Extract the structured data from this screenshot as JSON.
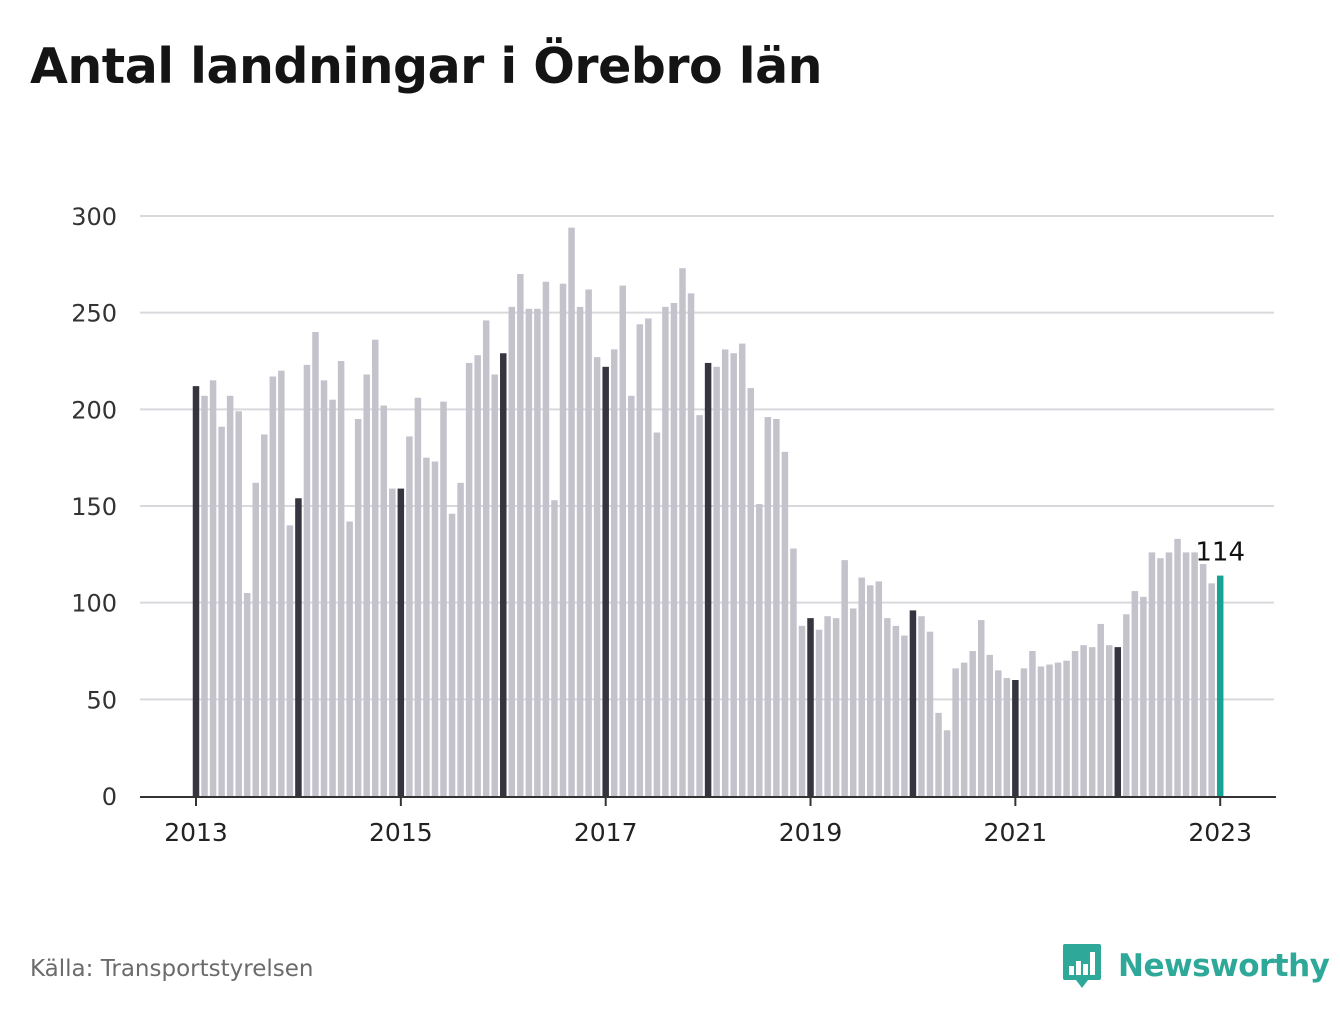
{
  "title": "Antal landningar i Örebro län",
  "source": "Källa: Transportstyrelsen",
  "brand": {
    "name": "Newsworthy",
    "icon": "bar-chart-speech-icon",
    "color": "#2ea899"
  },
  "colors": {
    "bar": "#c4c3cc",
    "january": "#37343f",
    "latest": "#16a393",
    "grid": "#d9d9dd",
    "axis": "#333333"
  },
  "chart_data": {
    "type": "bar",
    "title": "Antal landningar i Örebro län",
    "xlabel": "",
    "ylabel": "",
    "ylim": [
      0,
      300
    ],
    "yticks": [
      0,
      50,
      100,
      150,
      200,
      250,
      300
    ],
    "xticks": [
      "2013",
      "2015",
      "2017",
      "2019",
      "2021",
      "2023"
    ],
    "start": "2013-01",
    "highlight_label": "114",
    "grid": true,
    "values": [
      212,
      207,
      215,
      191,
      207,
      199,
      105,
      162,
      187,
      217,
      220,
      140,
      154,
      223,
      240,
      215,
      205,
      225,
      142,
      195,
      218,
      236,
      202,
      159,
      159,
      186,
      206,
      175,
      173,
      204,
      146,
      162,
      224,
      228,
      246,
      218,
      229,
      253,
      270,
      252,
      252,
      266,
      153,
      265,
      294,
      253,
      262,
      227,
      222,
      231,
      264,
      207,
      244,
      247,
      188,
      253,
      255,
      273,
      260,
      197,
      224,
      222,
      231,
      229,
      234,
      211,
      151,
      196,
      195,
      178,
      128,
      88,
      92,
      86,
      93,
      92,
      122,
      97,
      113,
      109,
      111,
      92,
      88,
      83,
      96,
      93,
      85,
      43,
      34,
      66,
      69,
      75,
      91,
      73,
      65,
      61,
      60,
      66,
      75,
      67,
      68,
      69,
      70,
      75,
      78,
      77,
      89,
      78,
      77,
      94,
      106,
      103,
      126,
      123,
      126,
      133,
      126,
      126,
      120,
      110,
      114
    ]
  }
}
